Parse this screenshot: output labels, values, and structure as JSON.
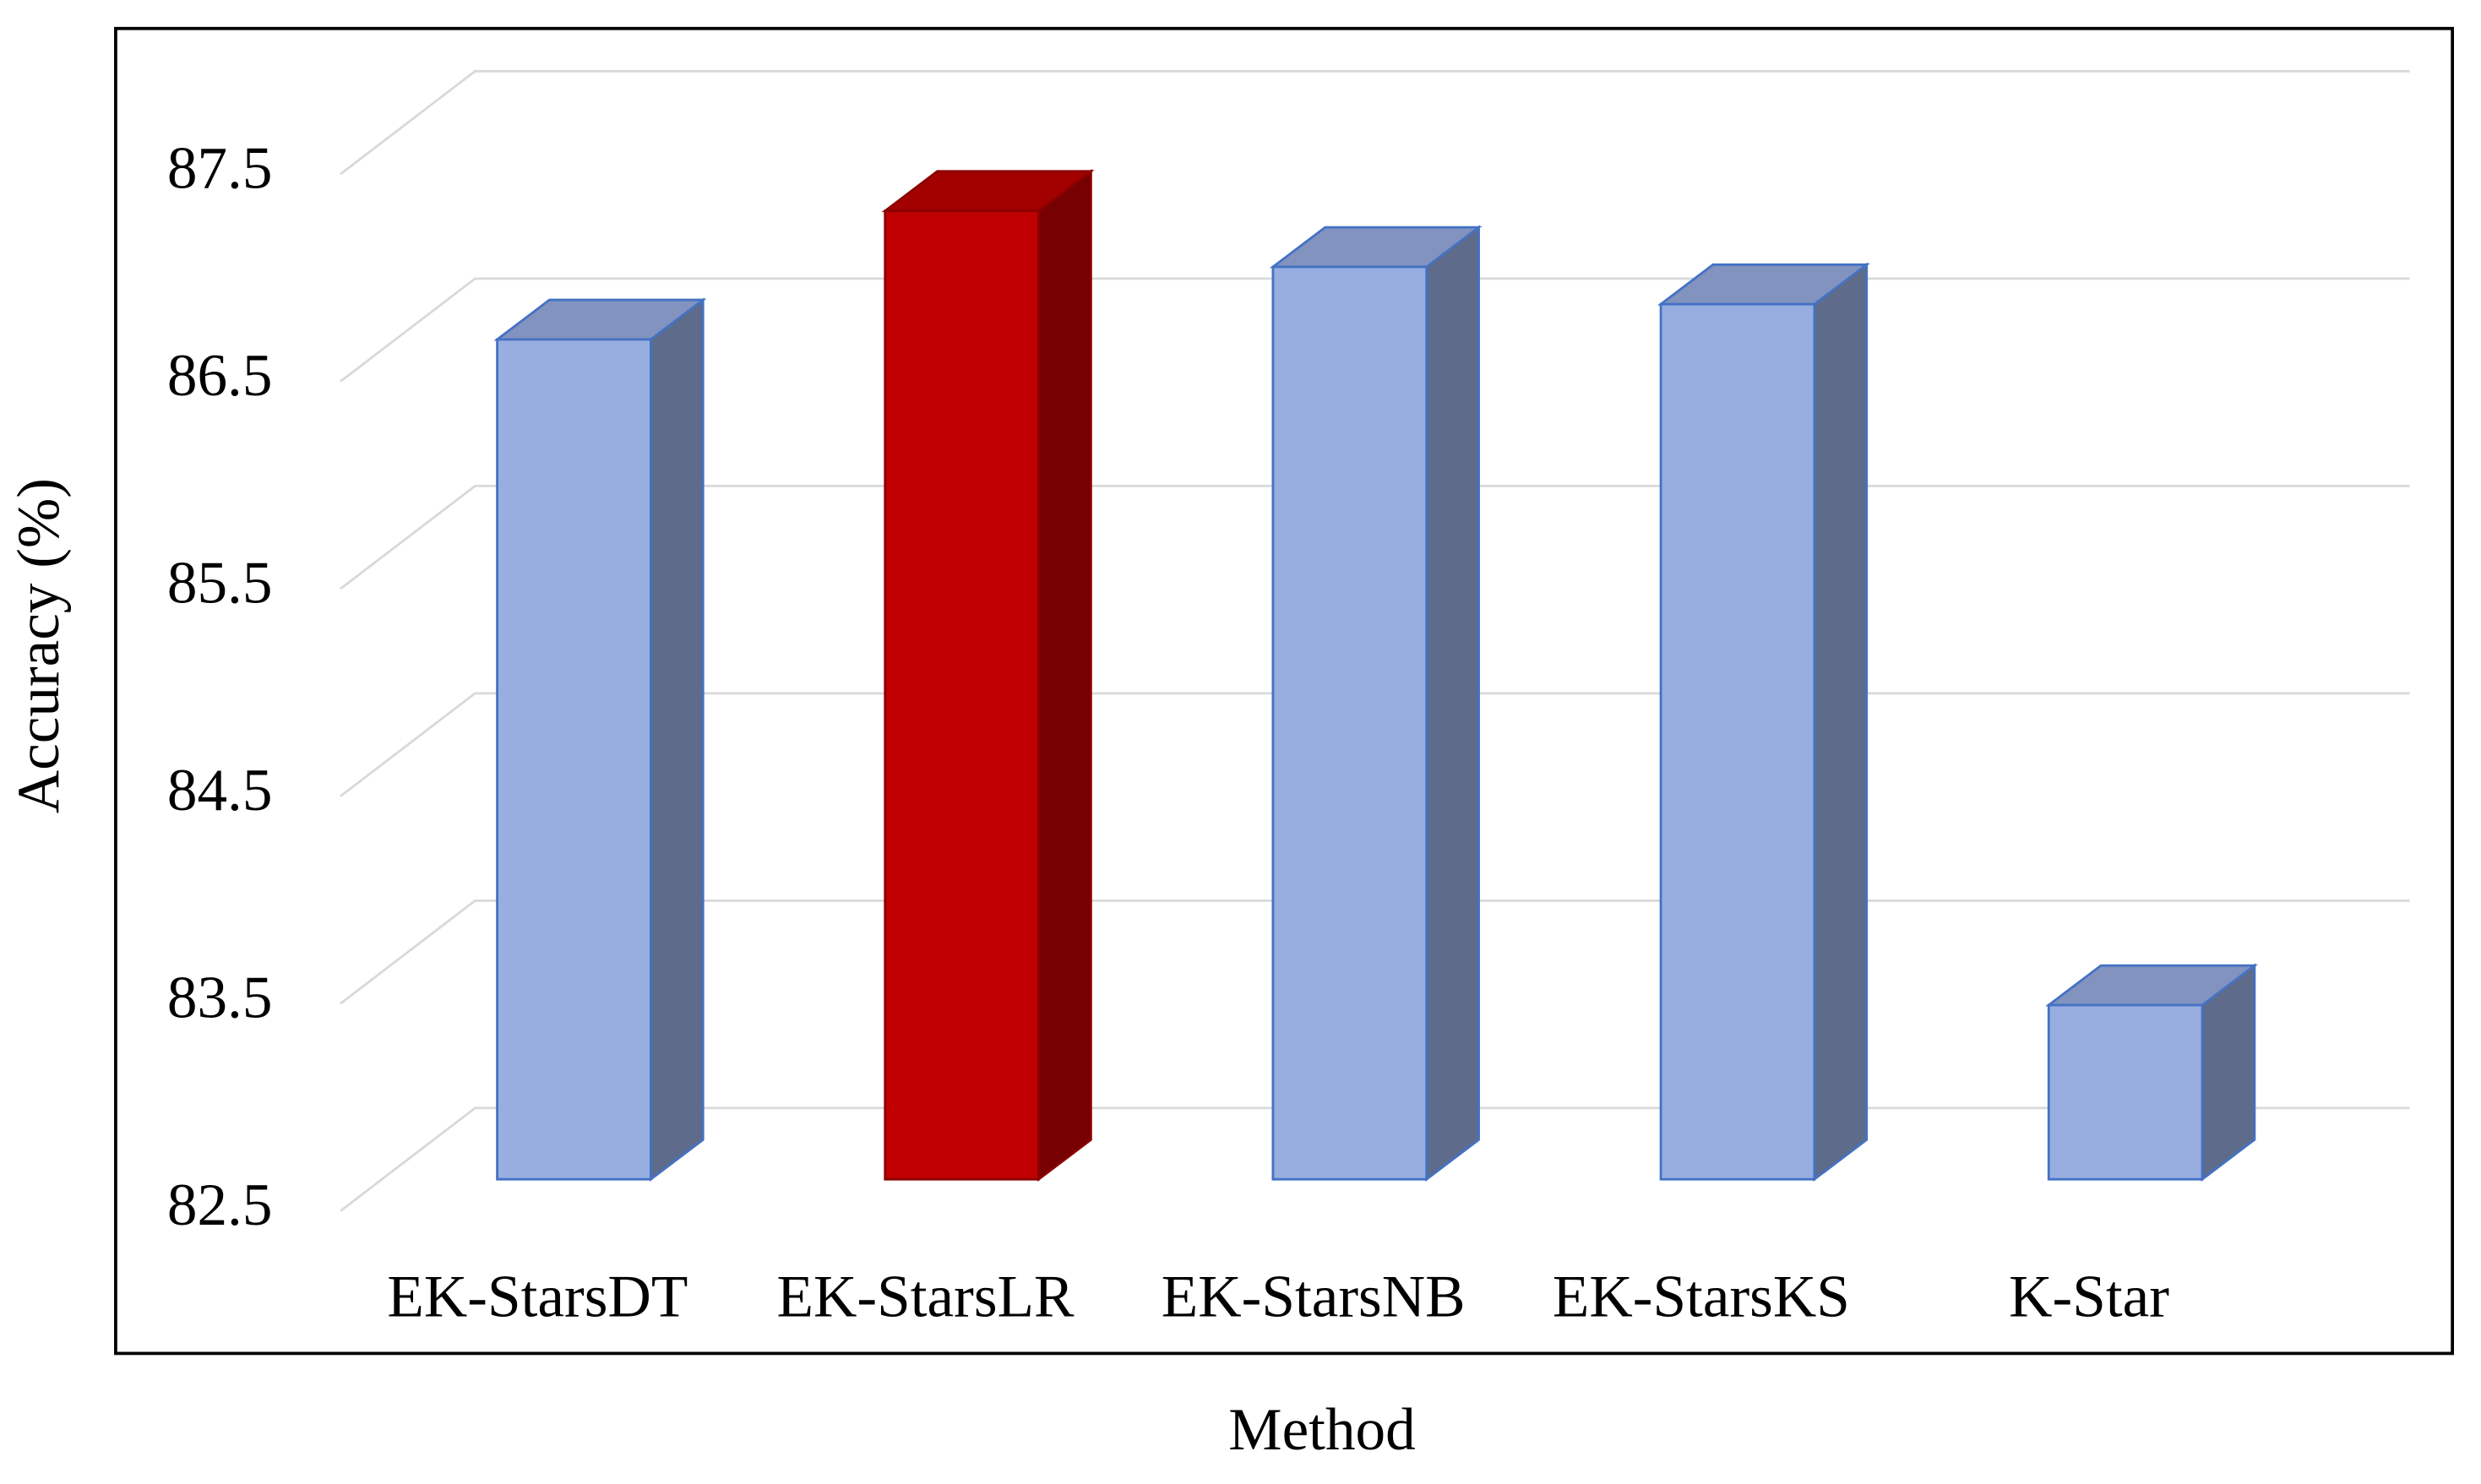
{
  "chart_data": {
    "type": "bar3d",
    "x_label": "Method",
    "y_label": "Accuracy (%)",
    "categories": [
      "EK-StarsDT",
      "EK-StarsLR",
      "EK-StarsNB",
      "EK-StarsKS",
      "K-Star"
    ],
    "values": [
      86.55,
      87.17,
      86.9,
      86.72,
      83.34
    ],
    "colors": [
      "#98ade0",
      "#c00000",
      "#98ade0",
      "#98ade0",
      "#98ade0"
    ],
    "ylim": [
      82.5,
      87.5
    ],
    "yticks": [
      82.5,
      83.5,
      84.5,
      85.5,
      86.5,
      87.5
    ],
    "grid": true
  }
}
